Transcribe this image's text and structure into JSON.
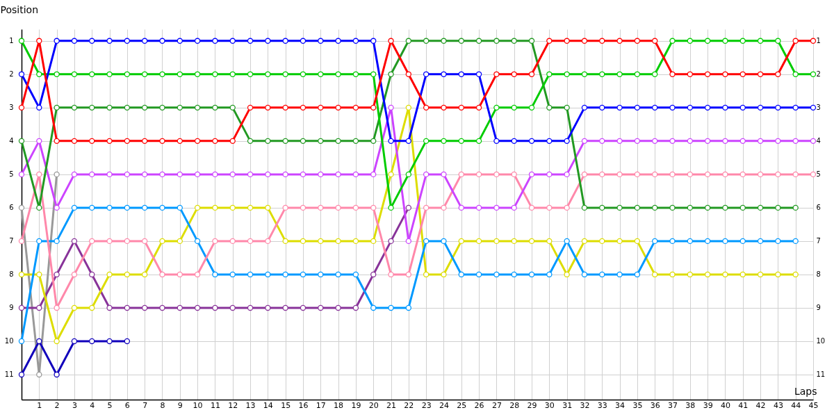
{
  "chart_data": {
    "type": "line",
    "xlabel": "Laps",
    "ylabel": "Position",
    "x": [
      0,
      1,
      2,
      3,
      4,
      5,
      6,
      7,
      8,
      9,
      10,
      11,
      12,
      13,
      14,
      15,
      16,
      17,
      18,
      19,
      20,
      21,
      22,
      23,
      24,
      25,
      26,
      27,
      28,
      29,
      30,
      31,
      32,
      33,
      34,
      35,
      36,
      37,
      38,
      39,
      40,
      41,
      42,
      43,
      44,
      45
    ],
    "xlim": [
      0,
      45
    ],
    "xticks": [
      1,
      2,
      3,
      4,
      5,
      6,
      7,
      8,
      9,
      10,
      11,
      12,
      13,
      14,
      15,
      16,
      17,
      18,
      19,
      20,
      21,
      22,
      23,
      24,
      25,
      26,
      27,
      28,
      29,
      30,
      31,
      32,
      33,
      34,
      35,
      36,
      37,
      38,
      39,
      40,
      41,
      42,
      43,
      44,
      45
    ],
    "ylim": [
      11.75,
      0.65
    ],
    "yticks": [
      1,
      2,
      3,
      4,
      5,
      6,
      7,
      8,
      9,
      10,
      11
    ],
    "y2lim": [
      11.75,
      0.65
    ],
    "y2ticks": [
      1,
      2,
      3,
      4,
      5,
      6,
      7,
      8,
      9,
      10,
      11
    ],
    "grid": true,
    "marker": "circle",
    "line_style": "solid",
    "series": [
      {
        "color": "#999999",
        "values": [
          6,
          11,
          5,
          null,
          null,
          null,
          null,
          null,
          null,
          null,
          null,
          null,
          null,
          null,
          null,
          null,
          null,
          null,
          null,
          null,
          null,
          null,
          null,
          null,
          null,
          null,
          null,
          null,
          null,
          null,
          null,
          null,
          null,
          null,
          null,
          null,
          null,
          null,
          null,
          null,
          null,
          null,
          null,
          null,
          null,
          null
        ]
      },
      {
        "color": "#1100bb",
        "values": [
          11,
          10,
          11,
          10,
          10,
          10,
          10,
          null,
          null,
          null,
          null,
          null,
          null,
          null,
          null,
          null,
          null,
          null,
          null,
          null,
          null,
          null,
          null,
          null,
          null,
          null,
          null,
          null,
          null,
          null,
          null,
          null,
          null,
          null,
          null,
          null,
          null,
          null,
          null,
          null,
          null,
          null,
          null,
          null,
          null,
          null
        ]
      },
      {
        "color": "#883399",
        "values": [
          9,
          9,
          8,
          7,
          8,
          9,
          9,
          9,
          9,
          9,
          9,
          9,
          9,
          9,
          9,
          9,
          9,
          9,
          9,
          9,
          8,
          7,
          6,
          null,
          null,
          null,
          null,
          null,
          null,
          null,
          null,
          null,
          null,
          null,
          null,
          null,
          null,
          null,
          null,
          null,
          null,
          null,
          null,
          null,
          null,
          null
        ]
      },
      {
        "color": "#dddd00",
        "values": [
          8,
          8,
          10,
          9,
          9,
          8,
          8,
          8,
          7,
          7,
          6,
          6,
          6,
          6,
          6,
          7,
          7,
          7,
          7,
          7,
          7,
          5,
          3,
          8,
          8,
          7,
          7,
          7,
          7,
          7,
          7,
          8,
          7,
          7,
          7,
          7,
          8,
          8,
          8,
          8,
          8,
          8,
          8,
          8,
          8,
          null
        ]
      },
      {
        "color": "#0099ff",
        "values": [
          10,
          7,
          7,
          6,
          6,
          6,
          6,
          6,
          6,
          6,
          7,
          8,
          8,
          8,
          8,
          8,
          8,
          8,
          8,
          8,
          9,
          9,
          9,
          7,
          7,
          8,
          8,
          8,
          8,
          8,
          8,
          7,
          8,
          8,
          8,
          8,
          7,
          7,
          7,
          7,
          7,
          7,
          7,
          7,
          7,
          null
        ]
      },
      {
        "color": "#ff88aa",
        "values": [
          7,
          5,
          9,
          8,
          7,
          7,
          7,
          7,
          8,
          8,
          8,
          7,
          7,
          7,
          7,
          6,
          6,
          6,
          6,
          6,
          6,
          8,
          8,
          6,
          6,
          5,
          5,
          5,
          5,
          6,
          6,
          6,
          5,
          5,
          5,
          5,
          5,
          5,
          5,
          5,
          5,
          5,
          5,
          5,
          5,
          5
        ]
      },
      {
        "color": "#cc44ff",
        "values": [
          5,
          4,
          6,
          5,
          5,
          5,
          5,
          5,
          5,
          5,
          5,
          5,
          5,
          5,
          5,
          5,
          5,
          5,
          5,
          5,
          5,
          3,
          7,
          5,
          5,
          6,
          6,
          6,
          6,
          5,
          5,
          5,
          4,
          4,
          4,
          4,
          4,
          4,
          4,
          4,
          4,
          4,
          4,
          4,
          4,
          4
        ]
      },
      {
        "color": "#229922",
        "values": [
          4,
          6,
          3,
          3,
          3,
          3,
          3,
          3,
          3,
          3,
          3,
          3,
          3,
          4,
          4,
          4,
          4,
          4,
          4,
          4,
          4,
          2,
          1,
          1,
          1,
          1,
          1,
          1,
          1,
          1,
          3,
          3,
          6,
          6,
          6,
          6,
          6,
          6,
          6,
          6,
          6,
          6,
          6,
          6,
          6,
          null
        ]
      },
      {
        "color": "#00cc00",
        "values": [
          1,
          2,
          2,
          2,
          2,
          2,
          2,
          2,
          2,
          2,
          2,
          2,
          2,
          2,
          2,
          2,
          2,
          2,
          2,
          2,
          2,
          6,
          5,
          4,
          4,
          4,
          4,
          3,
          3,
          3,
          2,
          2,
          2,
          2,
          2,
          2,
          2,
          1,
          1,
          1,
          1,
          1,
          1,
          1,
          2,
          2
        ]
      },
      {
        "color": "#0000ff",
        "values": [
          2,
          3,
          1,
          1,
          1,
          1,
          1,
          1,
          1,
          1,
          1,
          1,
          1,
          1,
          1,
          1,
          1,
          1,
          1,
          1,
          1,
          4,
          4,
          2,
          2,
          2,
          2,
          4,
          4,
          4,
          4,
          4,
          3,
          3,
          3,
          3,
          3,
          3,
          3,
          3,
          3,
          3,
          3,
          3,
          3,
          3
        ]
      },
      {
        "color": "#ff0000",
        "values": [
          3,
          1,
          4,
          4,
          4,
          4,
          4,
          4,
          4,
          4,
          4,
          4,
          4,
          3,
          3,
          3,
          3,
          3,
          3,
          3,
          3,
          1,
          2,
          3,
          3,
          3,
          3,
          2,
          2,
          2,
          1,
          1,
          1,
          1,
          1,
          1,
          1,
          2,
          2,
          2,
          2,
          2,
          2,
          2,
          1,
          1
        ]
      }
    ]
  }
}
